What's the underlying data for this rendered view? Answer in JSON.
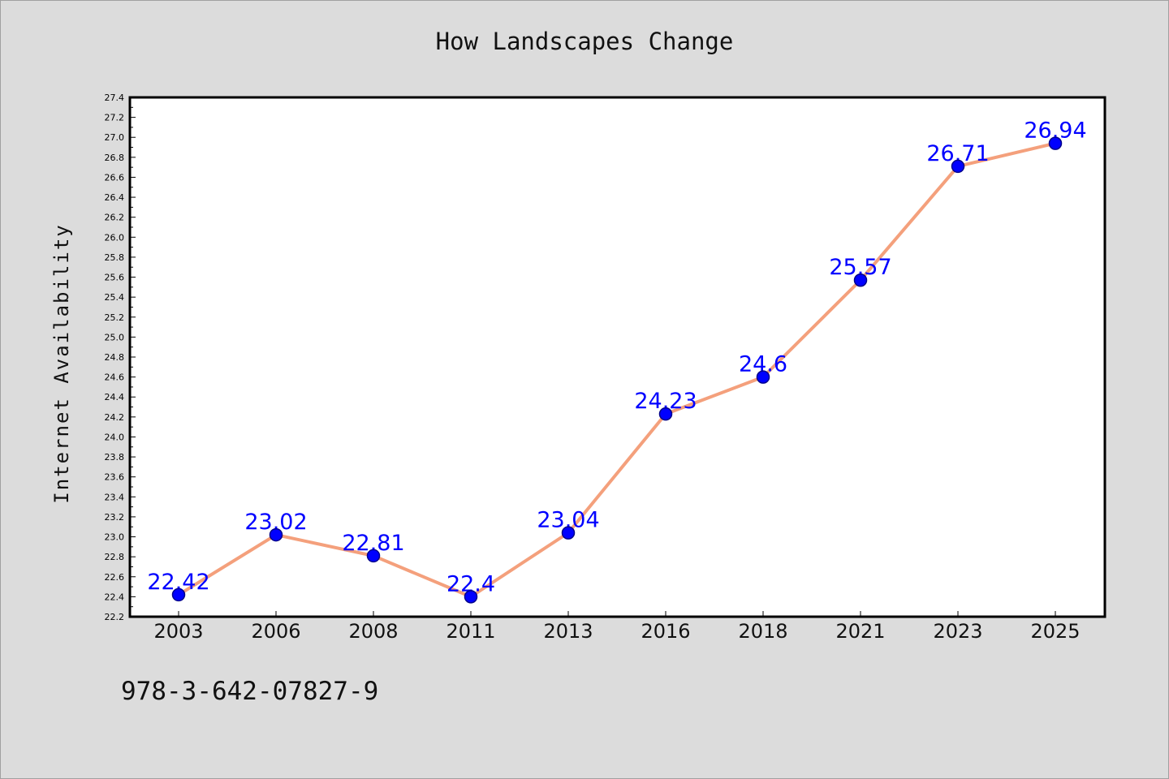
{
  "footer_code": "978-3-642-07827-9",
  "chart_data": {
    "type": "line",
    "title": "How Landscapes Change",
    "xlabel": "",
    "ylabel": "Internet Availability",
    "categories": [
      "2003",
      "2006",
      "2008",
      "2011",
      "2013",
      "2016",
      "2018",
      "2021",
      "2023",
      "2025"
    ],
    "series": [
      {
        "values": [
          22.42,
          23.02,
          22.81,
          22.4,
          23.04,
          24.23,
          24.6,
          25.57,
          26.71,
          26.94
        ],
        "labels": [
          "22.42",
          "23.02",
          "22.81",
          "22.4",
          "23.04",
          "24.23",
          "24.6",
          "25.57",
          "26.71",
          "26.94"
        ]
      }
    ],
    "ylim": [
      22.2,
      27.4
    ],
    "yticks": [
      "22.2",
      "22.4",
      "22.6",
      "22.8",
      "23.0",
      "23.2",
      "23.4",
      "23.6",
      "23.8",
      "24.0",
      "24.2",
      "24.4",
      "24.6",
      "24.8",
      "25.0",
      "25.2",
      "25.4",
      "25.6",
      "25.8",
      "26.0",
      "26.2",
      "26.4",
      "26.6",
      "26.8",
      "27.0",
      "27.2",
      "27.4"
    ],
    "grid": false,
    "legend": "none",
    "colors": {
      "line": "#f4a07c",
      "marker": "#0000ff",
      "marker_edge": "#00008b",
      "data_label": "#0000ff",
      "plot_background": "#ffffff",
      "figure_background": "#dcdcdc"
    }
  }
}
